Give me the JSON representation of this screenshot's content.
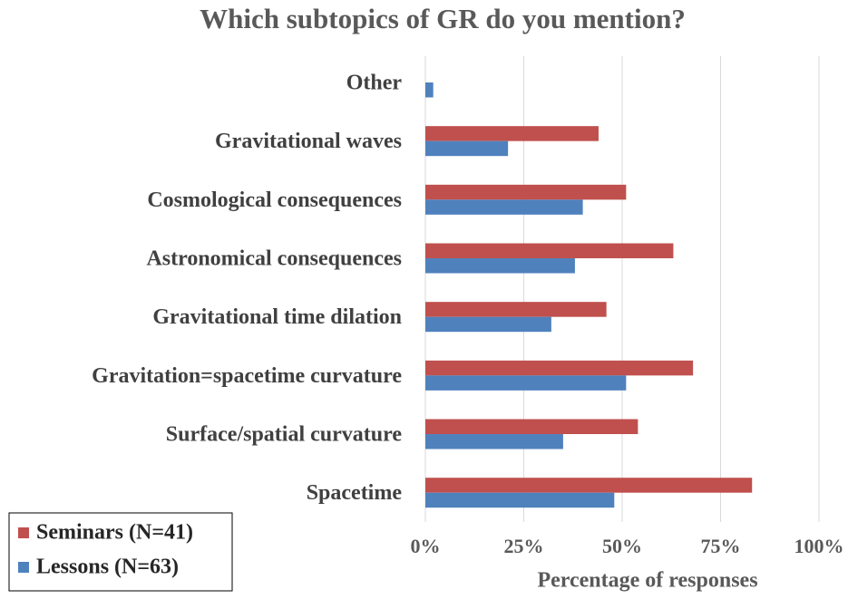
{
  "chart_data": {
    "type": "hbar",
    "title": "Which subtopics of GR do you mention?",
    "categories": [
      "Other",
      "Gravitational waves",
      "Cosmological consequences",
      "Astronomical consequences",
      "Gravitational time dilation",
      "Gravitation=spacetime curvature",
      "Surface/spatial curvature",
      "Spacetime"
    ],
    "series": [
      {
        "name": "Seminars (N=41)",
        "color": "#c0504d",
        "values": [
          0,
          44,
          51,
          63,
          46,
          68,
          54,
          83
        ]
      },
      {
        "name": "Lessons (N=63)",
        "color": "#4f81bd",
        "values": [
          2,
          21,
          40,
          38,
          32,
          51,
          35,
          48
        ]
      }
    ],
    "xlabel": "Percentage of responses",
    "xlim": [
      0,
      100
    ],
    "xticks": [
      {
        "value": 0,
        "label": "0%"
      },
      {
        "value": 25,
        "label": "25%"
      },
      {
        "value": 50,
        "label": "50%"
      },
      {
        "value": 75,
        "label": "75%"
      },
      {
        "value": 100,
        "label": "100%"
      }
    ],
    "grid": true,
    "legend": "lower left"
  }
}
